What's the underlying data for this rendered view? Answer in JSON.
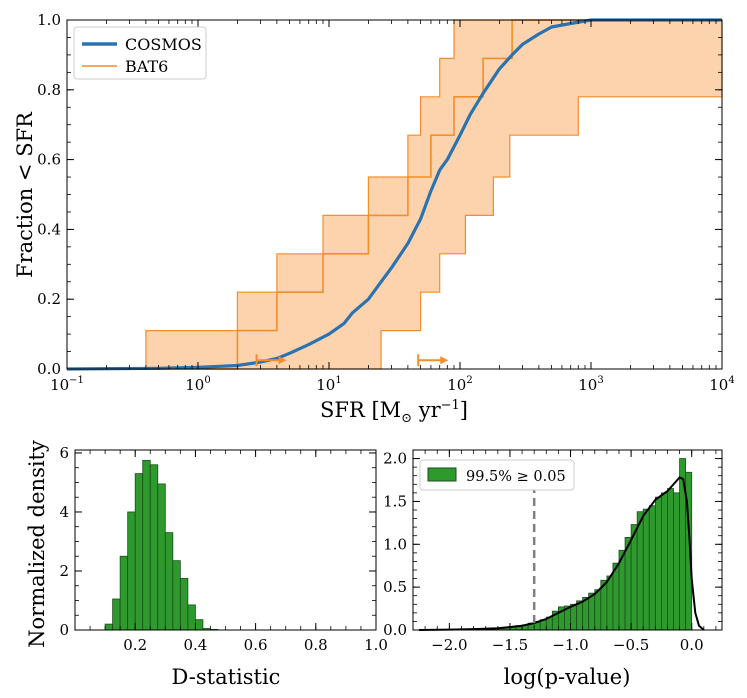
{
  "colors": {
    "cosmos": "#2b73b0",
    "bat6": "#f28e2b",
    "bat6_fill": "#fdd3ad",
    "hist": "#2e9a2e",
    "hist_edge": "#1b4d1b",
    "kde": "#000000",
    "vline": "#808080"
  },
  "chart_data": [
    {
      "type": "line",
      "id": "cdf",
      "title": "",
      "xlabel": "SFR [M⊙ yr⁻¹]",
      "ylabel": "Fraction < SFR",
      "xscale": "log",
      "xlim": [
        0.1,
        10000
      ],
      "ylim": [
        0,
        1
      ],
      "x_ticks": [
        0.1,
        1,
        10,
        100,
        1000,
        10000
      ],
      "x_tick_labels": [
        {
          "base": "10",
          "exp": "−1"
        },
        {
          "base": "10",
          "exp": "0"
        },
        {
          "base": "10",
          "exp": "1"
        },
        {
          "base": "10",
          "exp": "2"
        },
        {
          "base": "10",
          "exp": "3"
        },
        {
          "base": "10",
          "exp": "4"
        }
      ],
      "y_ticks": [
        0,
        0.2,
        0.4,
        0.6,
        0.8,
        1.0
      ],
      "y_tick_labels": [
        "0.0",
        "0.2",
        "0.4",
        "0.6",
        "0.8",
        "1.0"
      ],
      "legend_position": "top-left",
      "series": [
        {
          "name": "COSMOS",
          "style": "smooth",
          "x": [
            0.1,
            0.5,
            1,
            2,
            3,
            4,
            5,
            7,
            10,
            13,
            15,
            20,
            25,
            30,
            40,
            50,
            60,
            70,
            80,
            100,
            120,
            150,
            200,
            250,
            300,
            400,
            500,
            700,
            1000,
            2000,
            10000
          ],
          "y": [
            0,
            0.002,
            0.005,
            0.01,
            0.02,
            0.03,
            0.045,
            0.07,
            0.1,
            0.13,
            0.16,
            0.2,
            0.25,
            0.29,
            0.36,
            0.43,
            0.51,
            0.57,
            0.6,
            0.67,
            0.73,
            0.79,
            0.86,
            0.9,
            0.93,
            0.96,
            0.98,
            0.99,
            1.0,
            1.0,
            1.0
          ]
        },
        {
          "name": "BAT6",
          "style": "step",
          "x": [
            0.1,
            2,
            4,
            9,
            20,
            40,
            60,
            90,
            150,
            250,
            10000
          ],
          "y": [
            0,
            0.11,
            0.22,
            0.33,
            0.44,
            0.55,
            0.67,
            0.78,
            0.89,
            1.0,
            1.0
          ]
        }
      ],
      "band": {
        "name": "BAT6 confidence band",
        "upper_x": [
          0.1,
          0.4,
          2,
          4,
          9,
          20,
          40,
          50,
          70,
          90,
          250,
          10000
        ],
        "upper_y": [
          0,
          0.11,
          0.22,
          0.33,
          0.44,
          0.55,
          0.67,
          0.78,
          0.89,
          1.0,
          1.0,
          1.0
        ],
        "lower_x": [
          0.1,
          9,
          25,
          50,
          70,
          110,
          180,
          240,
          800,
          10000
        ],
        "lower_y": [
          0,
          0,
          0.11,
          0.22,
          0.33,
          0.44,
          0.55,
          0.67,
          0.78,
          1.0
        ]
      },
      "limit_arrows": [
        {
          "x": 2.8,
          "y": 0.025
        },
        {
          "x": 48,
          "y": 0.025
        }
      ]
    },
    {
      "type": "bar",
      "id": "dstat",
      "title": "",
      "xlabel": "D-statistic",
      "ylabel": "Normalized density",
      "xlim": [
        0,
        1.0
      ],
      "ylim": [
        0,
        6.1
      ],
      "x_ticks": [
        0.2,
        0.4,
        0.6,
        0.8,
        1.0
      ],
      "x_tick_labels": [
        "0.2",
        "0.4",
        "0.6",
        "0.8",
        "1.0"
      ],
      "y_ticks": [
        0,
        2,
        4,
        6
      ],
      "y_tick_labels": [
        "0",
        "2",
        "4",
        "6"
      ],
      "bin_edges": [
        0.1,
        0.125,
        0.15,
        0.175,
        0.2,
        0.225,
        0.25,
        0.275,
        0.3,
        0.325,
        0.35,
        0.375,
        0.4,
        0.425,
        0.45,
        0.475
      ],
      "values": [
        0.2,
        1.05,
        2.5,
        4.0,
        5.3,
        5.75,
        5.6,
        4.95,
        3.3,
        2.35,
        1.75,
        0.85,
        0.35,
        0.05,
        0.02
      ]
    },
    {
      "type": "bar",
      "id": "pvalue",
      "title": "",
      "xlabel": "log(p-value)",
      "ylabel": "",
      "xlim": [
        -2.3,
        0.25
      ],
      "ylim": [
        0,
        2.1
      ],
      "x_ticks": [
        -2.0,
        -1.5,
        -1.0,
        -0.5,
        0.0
      ],
      "x_tick_labels": [
        "−2.0",
        "−1.5",
        "−1.0",
        "−0.5",
        "0.0"
      ],
      "y_ticks": [
        0,
        0.5,
        1.0,
        1.5,
        2.0
      ],
      "y_tick_labels": [
        "0.0",
        "0.5",
        "1.0",
        "1.5",
        "2.0"
      ],
      "legend_label": "99.5% ≥ 0.05",
      "legend_position": "top-left",
      "vline_x": -1.3,
      "bin_edges": [
        -2.25,
        -2.2,
        -2.15,
        -2.1,
        -2.05,
        -2.0,
        -1.95,
        -1.9,
        -1.85,
        -1.8,
        -1.75,
        -1.7,
        -1.65,
        -1.6,
        -1.55,
        -1.5,
        -1.45,
        -1.4,
        -1.35,
        -1.3,
        -1.25,
        -1.2,
        -1.15,
        -1.1,
        -1.05,
        -1.0,
        -0.95,
        -0.9,
        -0.85,
        -0.8,
        -0.75,
        -0.7,
        -0.65,
        -0.6,
        -0.55,
        -0.5,
        -0.45,
        -0.4,
        -0.35,
        -0.3,
        -0.25,
        -0.2,
        -0.15,
        -0.1,
        -0.05,
        0.0
      ],
      "values": [
        0,
        0,
        0,
        0,
        0,
        0,
        0,
        0,
        0,
        0,
        0,
        0.01,
        0.01,
        0.02,
        0.03,
        0.04,
        0.05,
        0.06,
        0.08,
        0.1,
        0.12,
        0.15,
        0.22,
        0.27,
        0.28,
        0.3,
        0.34,
        0.38,
        0.43,
        0.47,
        0.58,
        0.63,
        0.78,
        0.93,
        1.08,
        1.23,
        1.38,
        1.41,
        1.45,
        1.55,
        1.6,
        1.65,
        1.6,
        2.0,
        1.84
      ],
      "kde": {
        "x": [
          -2.25,
          -2.0,
          -1.8,
          -1.6,
          -1.4,
          -1.3,
          -1.2,
          -1.1,
          -1.0,
          -0.9,
          -0.8,
          -0.7,
          -0.6,
          -0.5,
          -0.4,
          -0.3,
          -0.2,
          -0.15,
          -0.1,
          -0.07,
          -0.04,
          -0.02,
          0.0,
          0.03,
          0.06,
          0.1
        ],
        "y": [
          0,
          0.005,
          0.01,
          0.02,
          0.05,
          0.08,
          0.13,
          0.2,
          0.27,
          0.33,
          0.42,
          0.56,
          0.78,
          1.05,
          1.33,
          1.52,
          1.62,
          1.7,
          1.78,
          1.76,
          1.5,
          1.1,
          0.6,
          0.2,
          0.05,
          0.0
        ]
      }
    }
  ]
}
